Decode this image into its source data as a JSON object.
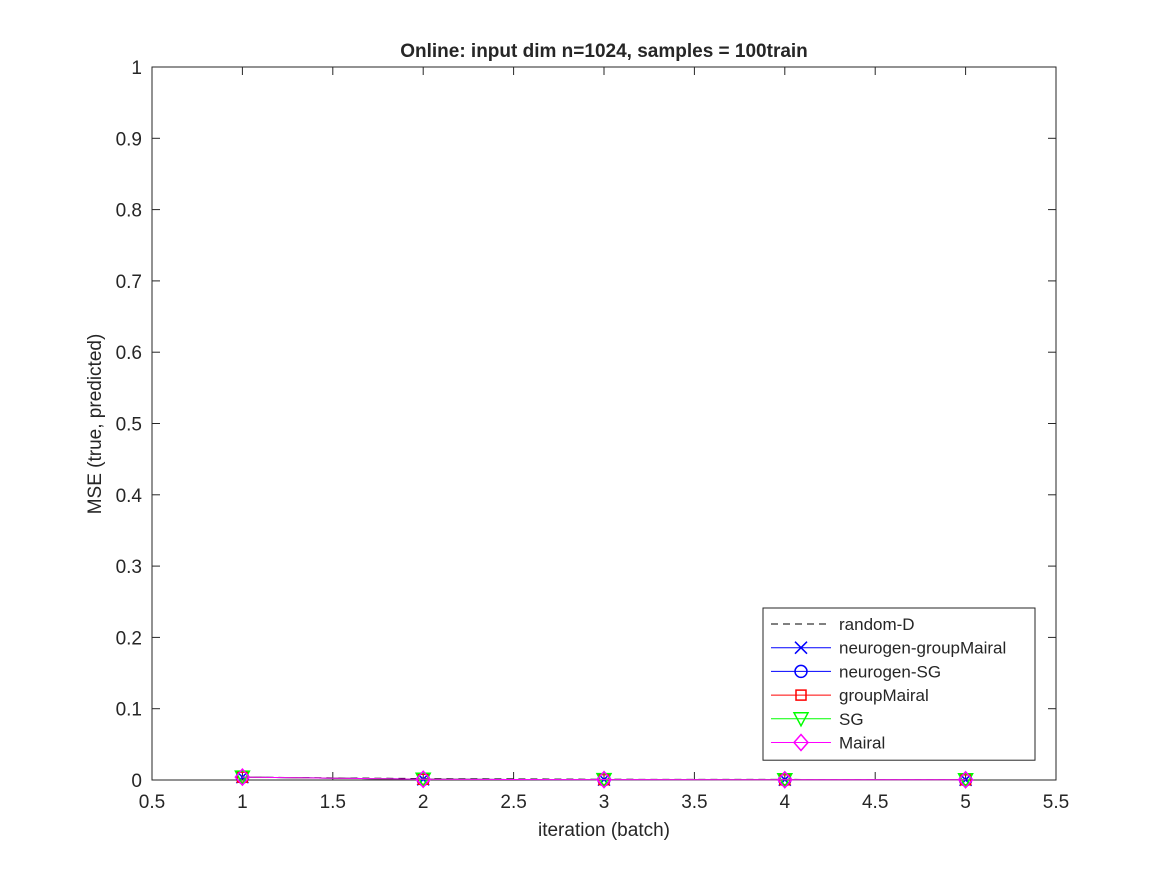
{
  "chart_data": {
    "type": "line",
    "title": "Online:  input dim n=1024, samples = 100train",
    "xlabel": "iteration (batch)",
    "ylabel": "MSE (true, predicted)",
    "xlim": [
      0.5,
      5.5
    ],
    "ylim": [
      0,
      1
    ],
    "x_ticks": [
      "0.5",
      "1",
      "1.5",
      "2",
      "2.5",
      "3",
      "3.5",
      "4",
      "4.5",
      "5",
      "5.5"
    ],
    "y_ticks": [
      "0",
      "0.1",
      "0.2",
      "0.3",
      "0.4",
      "0.5",
      "0.6",
      "0.7",
      "0.8",
      "0.9",
      "1"
    ],
    "grid": false,
    "legend_position": "bottom-right",
    "x": [
      1,
      2,
      3,
      4,
      5
    ],
    "series": [
      {
        "name": "random-D",
        "values": [
          0.004,
          0.002,
          0.001,
          0.0008,
          0.0006
        ],
        "color": "#000000",
        "dash": "dashed",
        "marker": "none"
      },
      {
        "name": "neurogen-groupMairal",
        "values": [
          0.004,
          0.001,
          0.0005,
          0.0004,
          0.0003
        ],
        "color": "#0000ff",
        "dash": "solid",
        "marker": "x"
      },
      {
        "name": "neurogen-SG",
        "values": [
          0.004,
          0.001,
          0.0005,
          0.0004,
          0.0003
        ],
        "color": "#0000ff",
        "dash": "solid",
        "marker": "circle"
      },
      {
        "name": "groupMairal",
        "values": [
          0.004,
          0.001,
          0.0005,
          0.0004,
          0.0003
        ],
        "color": "#ff0000",
        "dash": "solid",
        "marker": "square"
      },
      {
        "name": "SG",
        "values": [
          0.004,
          0.001,
          0.0005,
          0.0004,
          0.0003
        ],
        "color": "#00ff00",
        "dash": "solid",
        "marker": "triangle-down"
      },
      {
        "name": "Mairal",
        "values": [
          0.004,
          0.001,
          0.0005,
          0.0004,
          0.0003
        ],
        "color": "#ff00ff",
        "dash": "solid",
        "marker": "diamond"
      }
    ]
  }
}
